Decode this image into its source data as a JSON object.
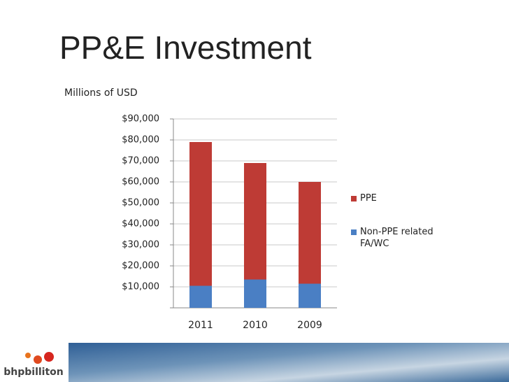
{
  "chart_data": {
    "type": "stacked-bar",
    "title": "PP&E Investment",
    "subtitle": "Millions of USD",
    "categories": [
      "2011",
      "2010",
      "2009"
    ],
    "series": [
      {
        "name": "Non-PPE related FA/WC",
        "color": "#4a7fc4",
        "values": [
          10500,
          13500,
          11500
        ]
      },
      {
        "name": "PPE",
        "color": "#be3b35",
        "values": [
          68500,
          55500,
          48500
        ]
      }
    ],
    "ylim": [
      0,
      90000
    ],
    "yticks": [
      {
        "value": 10000,
        "label": "$10,000"
      },
      {
        "value": 20000,
        "label": "$20,000"
      },
      {
        "value": 30000,
        "label": "$30,000"
      },
      {
        "value": 40000,
        "label": "$40,000"
      },
      {
        "value": 50000,
        "label": "$50,000"
      },
      {
        "value": 60000,
        "label": "$60,000"
      },
      {
        "value": 70000,
        "label": "$70,000"
      },
      {
        "value": 80000,
        "label": "$80,000"
      },
      {
        "value": 90000,
        "label": "$90,000"
      }
    ],
    "grid": true,
    "legend": "right"
  },
  "footer": {
    "logo": "bhpbilliton"
  }
}
